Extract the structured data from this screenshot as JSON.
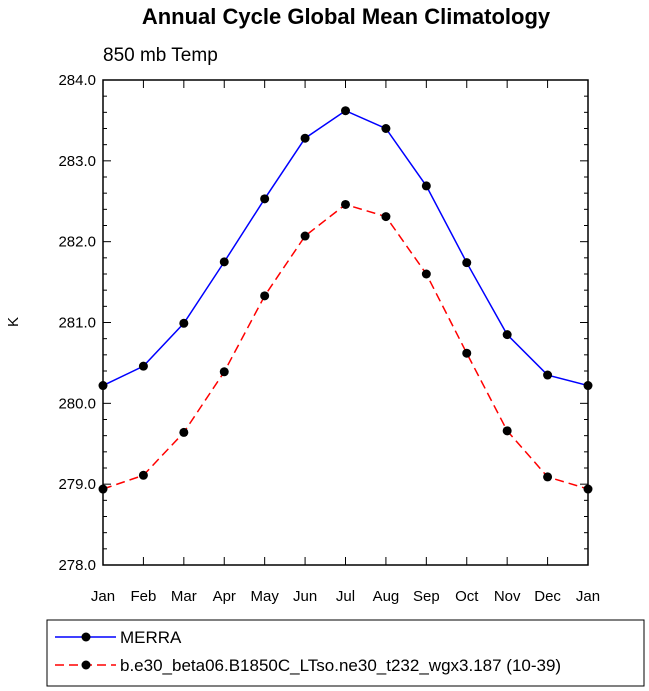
{
  "chart_data": {
    "type": "line",
    "title": "Annual Cycle Global Mean Climatology",
    "subtitle": "850 mb Temp",
    "xlabel": "",
    "ylabel": "K",
    "categories": [
      "Jan",
      "Feb",
      "Mar",
      "Apr",
      "May",
      "Jun",
      "Jul",
      "Aug",
      "Sep",
      "Oct",
      "Nov",
      "Dec",
      "Jan"
    ],
    "ylim": [
      278.0,
      284.0
    ],
    "yticks": [
      "278.0",
      "279.0",
      "280.0",
      "281.0",
      "282.0",
      "283.0",
      "284.0"
    ],
    "grid": false,
    "legend_position": "bottom",
    "series": [
      {
        "name": "MERRA",
        "color": "#0000ff",
        "dash": "solid",
        "values": [
          280.22,
          280.46,
          280.99,
          281.75,
          282.53,
          283.28,
          283.62,
          283.4,
          282.69,
          281.74,
          280.85,
          280.35,
          280.22
        ]
      },
      {
        "name": "b.e30_beta06.B1850C_LTso.ne30_t232_wgx3.187 (10-39)",
        "color": "#ff0000",
        "dash": "dashed",
        "values": [
          278.94,
          279.11,
          279.64,
          280.39,
          281.33,
          282.07,
          282.46,
          282.31,
          281.6,
          280.62,
          279.66,
          279.09,
          278.94
        ]
      }
    ]
  }
}
